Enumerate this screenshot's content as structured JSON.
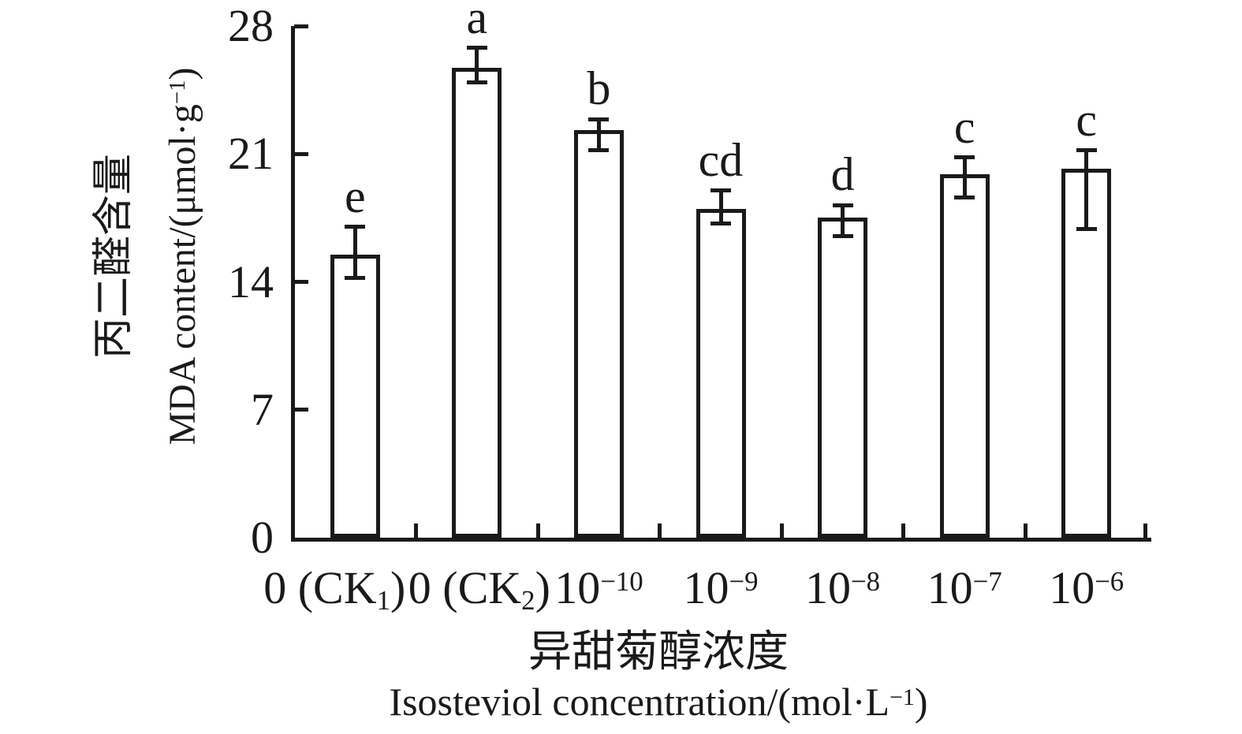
{
  "chart_data": {
    "type": "bar",
    "title": "",
    "categories": [
      "0 (CK_{1})",
      "0 (CK_{2})",
      "10^{−10}",
      "10^{−9}",
      "10^{−8}",
      "10^{−7}",
      "10^{−6}"
    ],
    "values": [
      15.4,
      25.6,
      22.2,
      17.9,
      17.4,
      19.8,
      20.1
    ],
    "error_bars": [
      {
        "top": 17.0,
        "bottom": 14.2
      },
      {
        "top": 26.8,
        "bottom": 24.9
      },
      {
        "top": 22.9,
        "bottom": 21.2
      },
      {
        "top": 19.0,
        "bottom": 17.2
      },
      {
        "top": 18.2,
        "bottom": 16.5
      },
      {
        "top": 20.8,
        "bottom": 18.6
      },
      {
        "top": 21.2,
        "bottom": 16.9
      }
    ],
    "sig_letters": [
      "e",
      "a",
      "b",
      "cd",
      "d",
      "c",
      "c"
    ],
    "y_ticks": [
      0,
      7,
      14,
      21,
      28
    ],
    "ylim": [
      0,
      28
    ],
    "ylabel_zh": "丙二醛含量",
    "ylabel_en": "MDA content/(μmol·g^{−1})",
    "xlabel_zh": "异甜菊醇浓度",
    "xlabel_en": "Isosteviol concentration/(mol·L^{−1})",
    "grid": false,
    "legend": false,
    "ink_color": "#1a1a1a",
    "bar_fill": "#ffffff"
  }
}
